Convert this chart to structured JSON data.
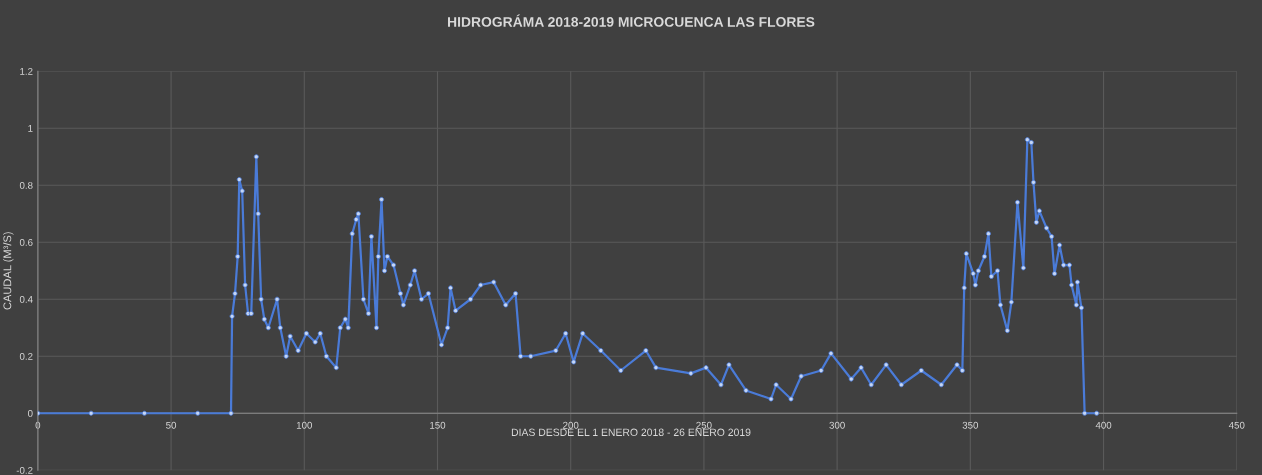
{
  "chart_data": {
    "type": "line",
    "title": "HIDROGRÁMA 2018-2019 MICROCUENCA LAS FLORES",
    "xlabel": "DIAS DESDE EL 1 ENERO 2018 - 26 ENERO 2019",
    "ylabel": "CAUDAL (M³/S)",
    "xlim": [
      0,
      450
    ],
    "xticks": [
      0,
      50,
      100,
      150,
      200,
      250,
      300,
      350,
      400,
      450
    ],
    "ylim": [
      -0.2,
      1.2
    ],
    "yticks": [
      -0.2,
      0,
      0.2,
      0.4,
      0.6,
      0.8,
      1,
      1.2
    ],
    "grid": true,
    "marker": "circle",
    "line_style": "solid",
    "series": [
      {
        "color": "#4a7bd8",
        "x": [
          0,
          20,
          40,
          60,
          72.5,
          72.9,
          74,
          75,
          75.6,
          76.7,
          77.8,
          78.9,
          80.1,
          82.0,
          82.7,
          83.8,
          85.0,
          86.5,
          89.8,
          91.0,
          93.2,
          94.7,
          97.7,
          100.8,
          104.1,
          106.0,
          108.3,
          112.0,
          113.5,
          115.4,
          116.5,
          118.0,
          119.5,
          120.3,
          122.2,
          124.1,
          125.2,
          127.1,
          127.8,
          129.0,
          130.1,
          131.2,
          133.5,
          136.1,
          137.2,
          139.8,
          141.4,
          144.0,
          146.6,
          151.5,
          153.8,
          154.9,
          156.8,
          162.4,
          166.2,
          171.1,
          175.6,
          179.3,
          181.2,
          185.0,
          194.4,
          198.1,
          201.1,
          204.5,
          211.3,
          218.8,
          228.2,
          232.0,
          245.1,
          250.8,
          256.4,
          259.4,
          265.8,
          275.2,
          277.1,
          282.7,
          286.5,
          294.0,
          297.7,
          305.3,
          309.0,
          312.8,
          318.4,
          324.1,
          331.6,
          339.1,
          345,
          347,
          347.7,
          348.5,
          351.1,
          351.9,
          353.0,
          355.3,
          356.8,
          357.9,
          360.2,
          361.3,
          363.9,
          365.4,
          367.7,
          369.9,
          371.4,
          372.9,
          373.7,
          374.8,
          375.9,
          378.6,
          380.5,
          381.6,
          383.5,
          385.0,
          387.2,
          388.0,
          389.8,
          390.2,
          391.7,
          392.9,
          397.4
        ],
        "values": [
          0,
          0,
          0,
          0,
          0,
          0.34,
          0.42,
          0.55,
          0.82,
          0.78,
          0.45,
          0.35,
          0.35,
          0.9,
          0.7,
          0.4,
          0.33,
          0.3,
          0.4,
          0.3,
          0.2,
          0.27,
          0.22,
          0.28,
          0.25,
          0.28,
          0.2,
          0.16,
          0.3,
          0.33,
          0.3,
          0.63,
          0.68,
          0.7,
          0.4,
          0.35,
          0.62,
          0.3,
          0.55,
          0.75,
          0.5,
          0.55,
          0.52,
          0.42,
          0.38,
          0.45,
          0.5,
          0.4,
          0.42,
          0.24,
          0.3,
          0.44,
          0.36,
          0.4,
          0.45,
          0.46,
          0.38,
          0.42,
          0.2,
          0.2,
          0.22,
          0.28,
          0.18,
          0.28,
          0.22,
          0.15,
          0.22,
          0.16,
          0.14,
          0.16,
          0.1,
          0.17,
          0.08,
          0.05,
          0.1,
          0.05,
          0.13,
          0.15,
          0.21,
          0.12,
          0.16,
          0.1,
          0.17,
          0.1,
          0.15,
          0.1,
          0.17,
          0.15,
          0.44,
          0.56,
          0.49,
          0.45,
          0.5,
          0.55,
          0.63,
          0.48,
          0.5,
          0.38,
          0.29,
          0.39,
          0.74,
          0.51,
          0.96,
          0.95,
          0.81,
          0.67,
          0.71,
          0.65,
          0.62,
          0.49,
          0.59,
          0.52,
          0.52,
          0.45,
          0.38,
          0.46,
          0.37,
          0,
          0
        ]
      }
    ]
  }
}
